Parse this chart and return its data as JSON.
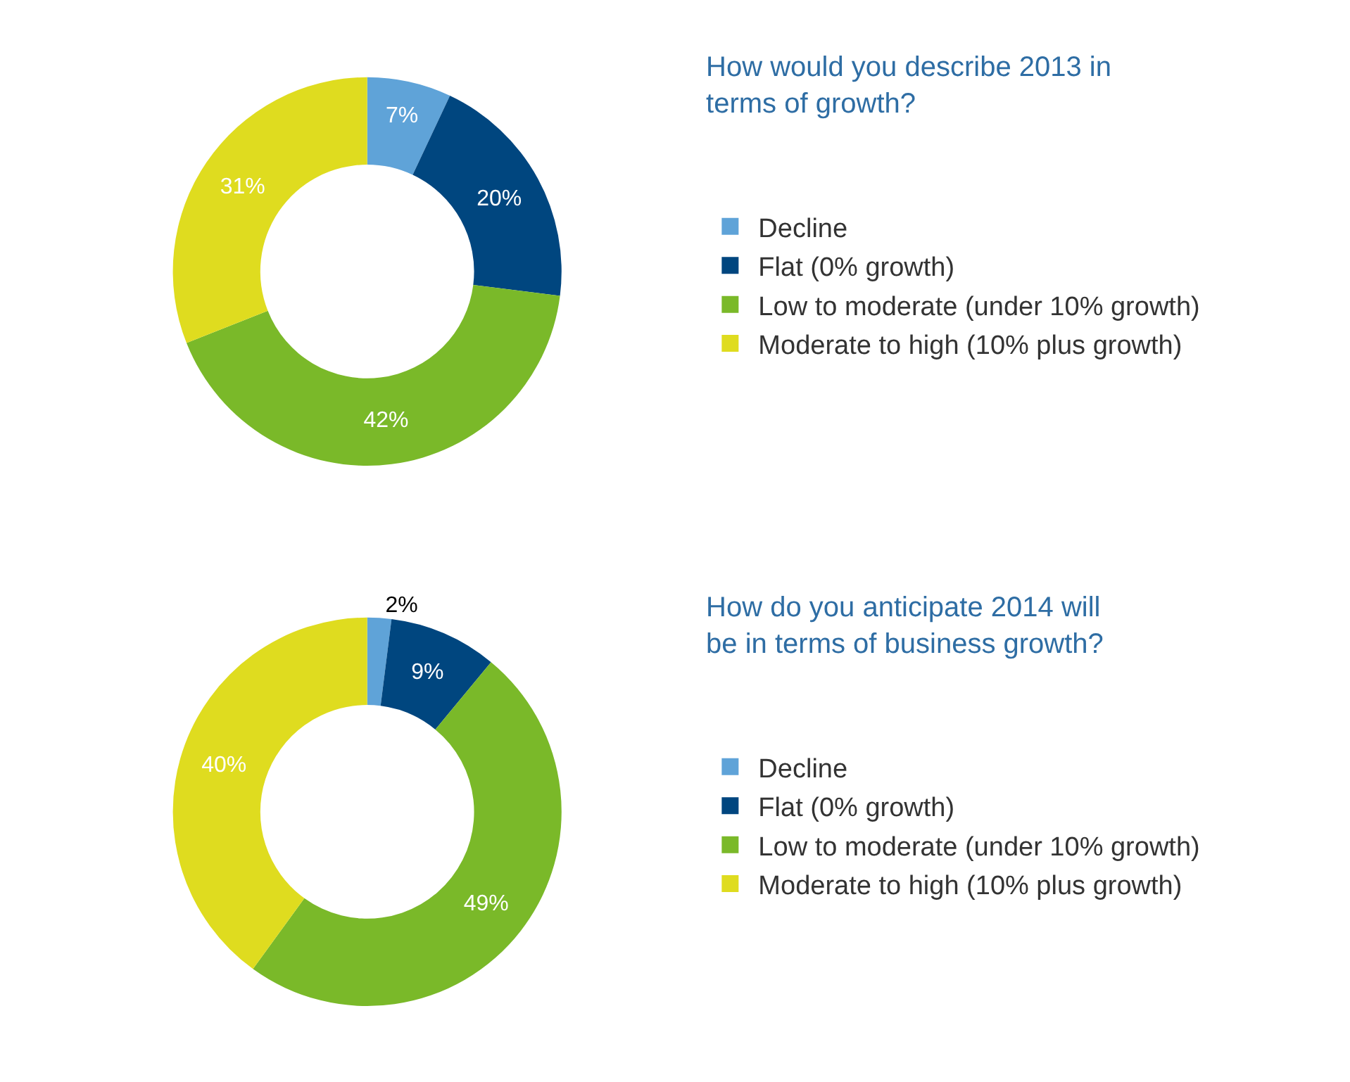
{
  "chart_data": [
    {
      "type": "donut",
      "title": "How would you describe 2013 in terms of growth?",
      "categories": [
        "Decline",
        "Flat (0% growth)",
        "Low to moderate (under 10% growth)",
        "Moderate to high (10% plus growth)"
      ],
      "values": [
        7,
        20,
        42,
        31
      ],
      "value_labels": [
        "7%",
        "20%",
        "42%",
        "31%"
      ],
      "colors": [
        "#5fa3d8",
        "#00467f",
        "#7ab929",
        "#dfdc1f"
      ],
      "legend": "right"
    },
    {
      "type": "donut",
      "title": "How do you anticipate 2014 will be in terms of business growth?",
      "categories": [
        "Decline",
        "Flat (0% growth)",
        "Low to moderate (under 10% growth)",
        "Moderate to high (10% plus growth)"
      ],
      "values": [
        2,
        9,
        49,
        40
      ],
      "value_labels": [
        "2%",
        "9%",
        "49%",
        "40%"
      ],
      "colors": [
        "#5fa3d8",
        "#00467f",
        "#7ab929",
        "#dfdc1f"
      ],
      "legend": "right"
    }
  ]
}
